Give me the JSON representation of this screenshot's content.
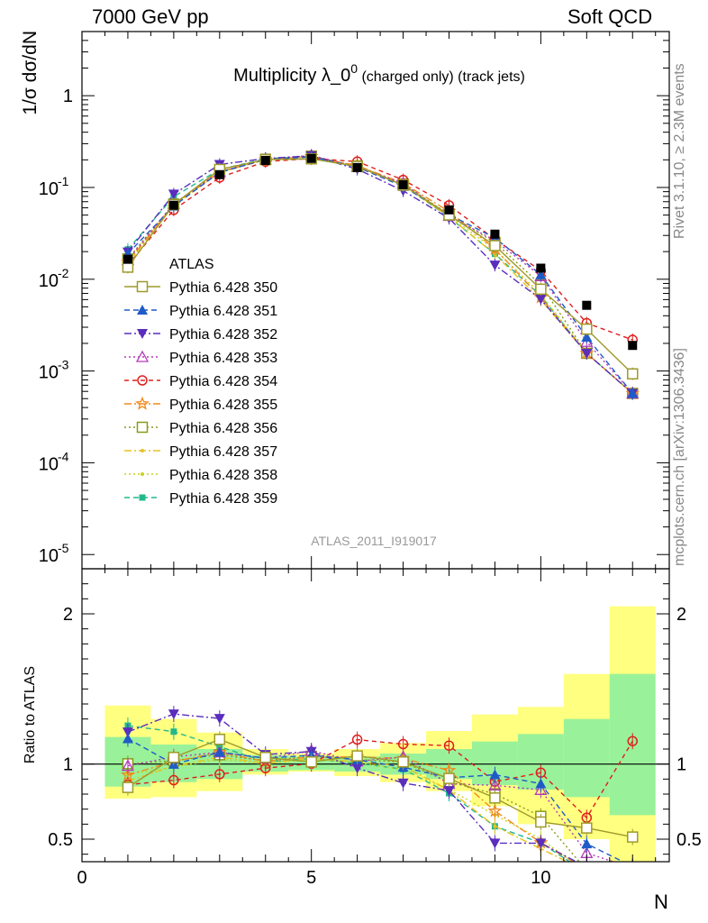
{
  "header": {
    "left": "7000 GeV pp",
    "right": "Soft QCD"
  },
  "side_labels": {
    "rivet": "Rivet 3.1.10, ≥ 2.3M events",
    "mcplots": "mcplots.cern.ch [arXiv:1306.3436]"
  },
  "chart_data": {
    "type": "line",
    "title": "Multiplicity λ_0⁰ (charged only) (track jets)",
    "title_main": "Multiplicity λ_0",
    "title_sup": "0",
    "title_suffix": "(charged only) (track jets)",
    "analysis_tag": "ATLAS_2011_I919017",
    "xlabel": "N",
    "ylabel": "1/σ dσ/dN",
    "ratio_ylabel": "Ratio to ATLAS",
    "xlim": [
      0,
      12.8
    ],
    "ylim_log": [
      7e-06,
      5
    ],
    "ratio_ylim": [
      0.35,
      2.3
    ],
    "log_y": true,
    "legend_position": "left-middle",
    "x_ticks": [
      "0",
      "5",
      "10"
    ],
    "y_ticks": [
      "1",
      "10⁻¹",
      "10⁻²",
      "10⁻³",
      "10⁻⁴",
      "10⁻⁵"
    ],
    "ratio_ticks": [
      "0.5",
      "1",
      "2"
    ],
    "x": [
      1,
      2,
      3,
      4,
      5,
      6,
      7,
      8,
      9,
      10,
      11,
      12
    ],
    "data": {
      "name": "ATLAS",
      "values": [
        0.0165,
        0.064,
        0.138,
        0.197,
        0.207,
        0.165,
        0.107,
        0.057,
        0.031,
        0.0132,
        0.0052,
        0.0019
      ],
      "band_inner_lo": [
        0.85,
        0.88,
        0.9,
        0.95,
        0.96,
        0.95,
        0.93,
        0.9,
        0.86,
        0.83,
        0.78,
        0.66
      ],
      "band_inner_hi": [
        1.18,
        1.13,
        1.1,
        1.06,
        1.05,
        1.05,
        1.07,
        1.1,
        1.15,
        1.2,
        1.3,
        1.6
      ],
      "band_outer_lo": [
        0.77,
        0.78,
        0.82,
        0.93,
        0.95,
        0.92,
        0.88,
        0.82,
        0.72,
        0.6,
        0.5,
        0.3
      ],
      "band_outer_hi": [
        1.39,
        1.3,
        1.21,
        1.1,
        1.07,
        1.1,
        1.14,
        1.22,
        1.33,
        1.38,
        1.6,
        2.05
      ]
    },
    "series": [
      {
        "name": "Pythia 6.428 350",
        "color": "#9e9a2a",
        "dash": "none",
        "marker": "open-square",
        "ratio": [
          0.82,
          1.02,
          1.14,
          1.02,
          0.99,
          1.03,
          0.99,
          0.88,
          0.75,
          0.59,
          0.55,
          0.49
        ]
      },
      {
        "name": "Pythia 6.428 351",
        "color": "#1f5bc8",
        "dash": "6,4",
        "marker": "triangle-up",
        "ratio": [
          1.15,
          0.98,
          1.06,
          1.02,
          1.04,
          1.01,
          0.96,
          0.89,
          0.91,
          0.85,
          0.45,
          0.3
        ]
      },
      {
        "name": "Pythia 6.428 352",
        "color": "#5a2dbd",
        "dash": "8,3,2,3",
        "marker": "triangle-down",
        "ratio": [
          1.2,
          1.32,
          1.29,
          1.05,
          1.07,
          0.96,
          0.86,
          0.81,
          0.46,
          0.46,
          0.3,
          0.3
        ]
      },
      {
        "name": "Pythia 6.428 353",
        "color": "#b23bb8",
        "dash": "2,3",
        "marker": "open-triangle",
        "ratio": [
          0.98,
          1.04,
          1.07,
          1.03,
          1.08,
          1.01,
          1.04,
          0.86,
          0.85,
          0.82,
          0.4,
          0.3
        ]
      },
      {
        "name": "Pythia 6.428 354",
        "color": "#e01e1e",
        "dash": "5,4",
        "marker": "open-circle",
        "ratio": [
          0.86,
          0.89,
          0.93,
          0.97,
          1.0,
          1.16,
          1.13,
          1.12,
          0.88,
          0.94,
          0.64,
          1.15
        ]
      },
      {
        "name": "Pythia 6.428 355",
        "color": "#f08a1e",
        "dash": "8,3,2,3",
        "marker": "open-star",
        "ratio": [
          0.93,
          1.02,
          1.08,
          1.02,
          1.05,
          1.05,
          1.04,
          0.96,
          0.69,
          0.48,
          0.3,
          0.3
        ]
      },
      {
        "name": "Pythia 6.428 356",
        "color": "#8a9a18",
        "dash": "2,3",
        "marker": "open-square",
        "ratio": [
          1.01,
          1.03,
          1.07,
          1.03,
          1.06,
          1.04,
          1.02,
          0.89,
          0.81,
          0.66,
          0.3,
          0.3
        ]
      },
      {
        "name": "Pythia 6.428 357",
        "color": "#e8c21e",
        "dash": "8,3,2,3",
        "marker": "dot",
        "ratio": [
          0.9,
          1.0,
          1.06,
          1.02,
          1.05,
          1.03,
          1.0,
          0.84,
          0.6,
          0.45,
          0.3,
          0.3
        ]
      },
      {
        "name": "Pythia 6.428 358",
        "color": "#c9d21e",
        "dash": "2,3",
        "marker": "dot",
        "ratio": [
          0.95,
          1.0,
          1.05,
          1.02,
          1.05,
          1.03,
          0.98,
          0.85,
          0.68,
          0.52,
          0.3,
          0.3
        ]
      },
      {
        "name": "Pythia 6.428 359",
        "color": "#22b88e",
        "dash": "6,4",
        "marker": "filled-square",
        "ratio": [
          1.28,
          1.24,
          1.14,
          1.04,
          1.06,
          1.03,
          0.99,
          0.83,
          0.61,
          0.5,
          0.3,
          0.3
        ]
      }
    ]
  }
}
